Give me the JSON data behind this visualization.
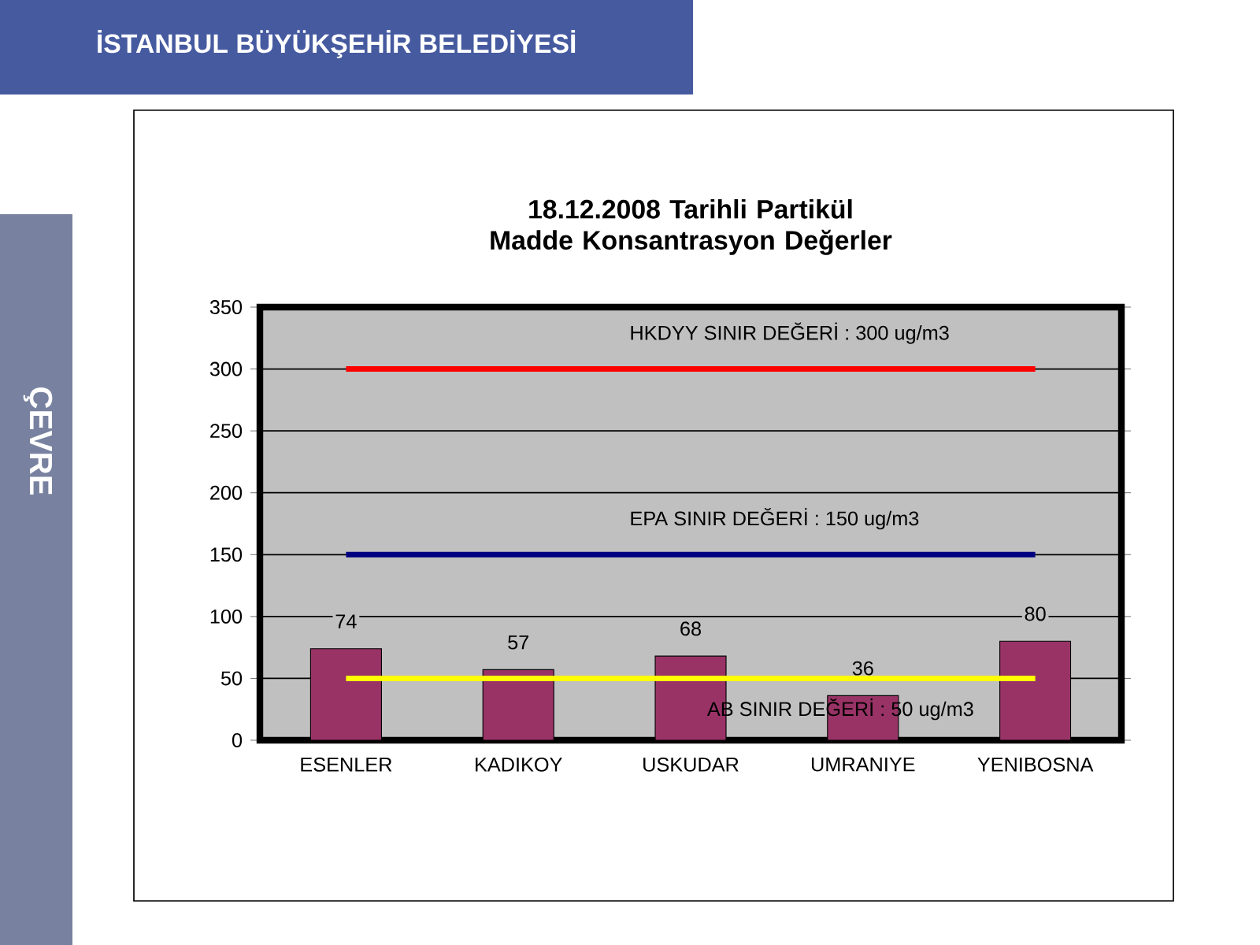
{
  "chart_data": {
    "type": "bar",
    "title": "18.12.2008 Tarihli Partikül Madde Konsantrasyon Değerler",
    "categories": [
      "ESENLER",
      "KADIKOY",
      "USKUDAR",
      "UMRANIYE",
      "YENIBOSNA"
    ],
    "values": [
      74,
      57,
      68,
      36,
      80
    ],
    "color": "#993366",
    "data_labels": true,
    "ylim": [
      0,
      350
    ],
    "yticks": [
      0,
      50,
      100,
      150,
      200,
      250,
      300,
      350
    ],
    "grid": "y",
    "ref_lines": [
      {
        "axis": "y",
        "value": 300,
        "label": "HKDYY SINIR DEĞERİ : 300 ug/m3",
        "color": "#ff0000"
      },
      {
        "axis": "y",
        "value": 150,
        "label": "EPA SINIR DEĞERİ : 150 ug/m3",
        "color": "#000080"
      },
      {
        "axis": "y",
        "value": 50,
        "label": "AB SINIR DEĞERİ : 50 ug/m3",
        "color": "#ffff00"
      }
    ],
    "annotations": [
      "İSTANBUL BÜYÜKŞEHİR BELEDİYESİ",
      "ÇEVRE"
    ]
  }
}
